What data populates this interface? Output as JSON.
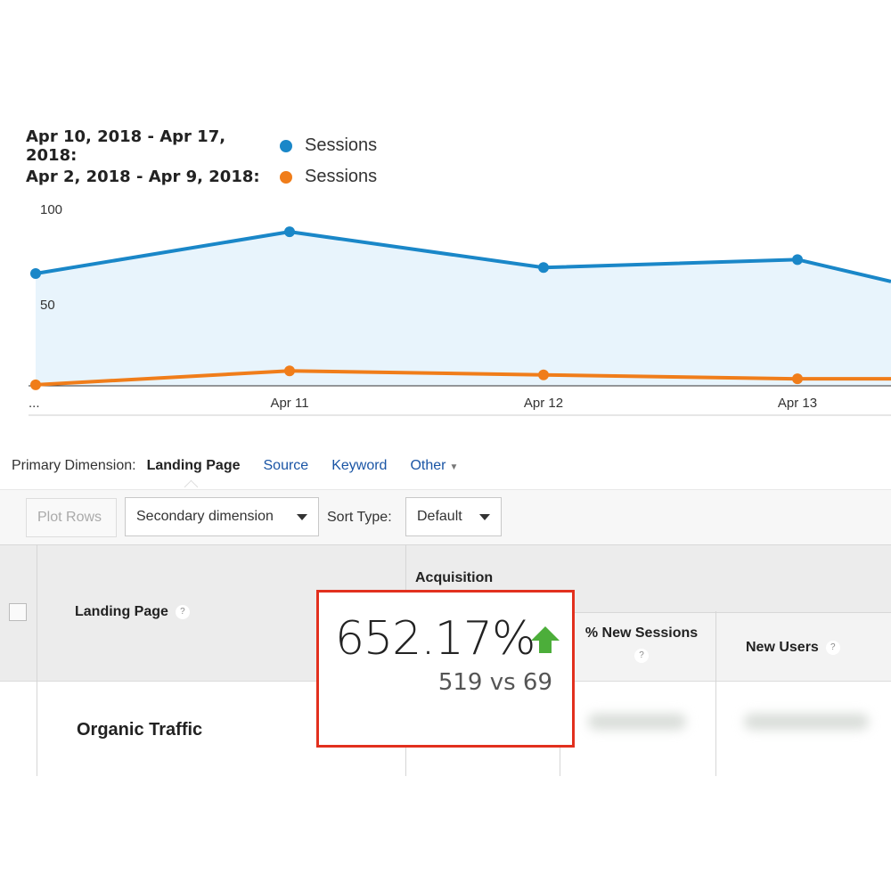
{
  "legend": [
    {
      "range": "Apr 10, 2018 - Apr 17, 2018:",
      "series": "Sessions",
      "color": "#1a87c8"
    },
    {
      "range": "Apr 2, 2018 - Apr 9, 2018:",
      "series": "Sessions",
      "color": "#f07d1a"
    }
  ],
  "chart_data": {
    "type": "line",
    "categories": [
      "",
      "Apr 11",
      "Apr 12",
      "Apr 13",
      ""
    ],
    "x_tick_labels": [
      "...",
      "Apr 11",
      "Apr 12",
      "Apr 13"
    ],
    "y_tick_labels": [
      "100",
      "50"
    ],
    "ylim": [
      0,
      100
    ],
    "series": [
      {
        "name": "Sessions",
        "color": "#1a87c8",
        "fill": "#e8f4fc",
        "values": [
          61,
          82,
          64,
          68,
          57
        ]
      },
      {
        "name": "Sessions",
        "color": "#f07d1a",
        "values": [
          5,
          12,
          10,
          8,
          8
        ]
      }
    ]
  },
  "dimensions": {
    "label": "Primary Dimension:",
    "active": "Landing Page",
    "links": [
      "Source",
      "Keyword",
      "Other"
    ]
  },
  "toolbar": {
    "plot_rows": "Plot Rows",
    "secondary_dimension": "Secondary dimension",
    "sort_type_label": "Sort Type:",
    "sort_type_value": "Default"
  },
  "table": {
    "col_landing_page": "Landing Page",
    "col_group_acquisition": "Acquisition",
    "col_new_sessions": "% New Sessions",
    "col_new_users": "New Users",
    "help_mark": "?",
    "row_label": "Organic Traffic"
  },
  "highlight": {
    "percent": "652.17%",
    "comparison": "519 vs 69",
    "arrow_color": "#4cae3a",
    "border_color": "#e2301e"
  }
}
